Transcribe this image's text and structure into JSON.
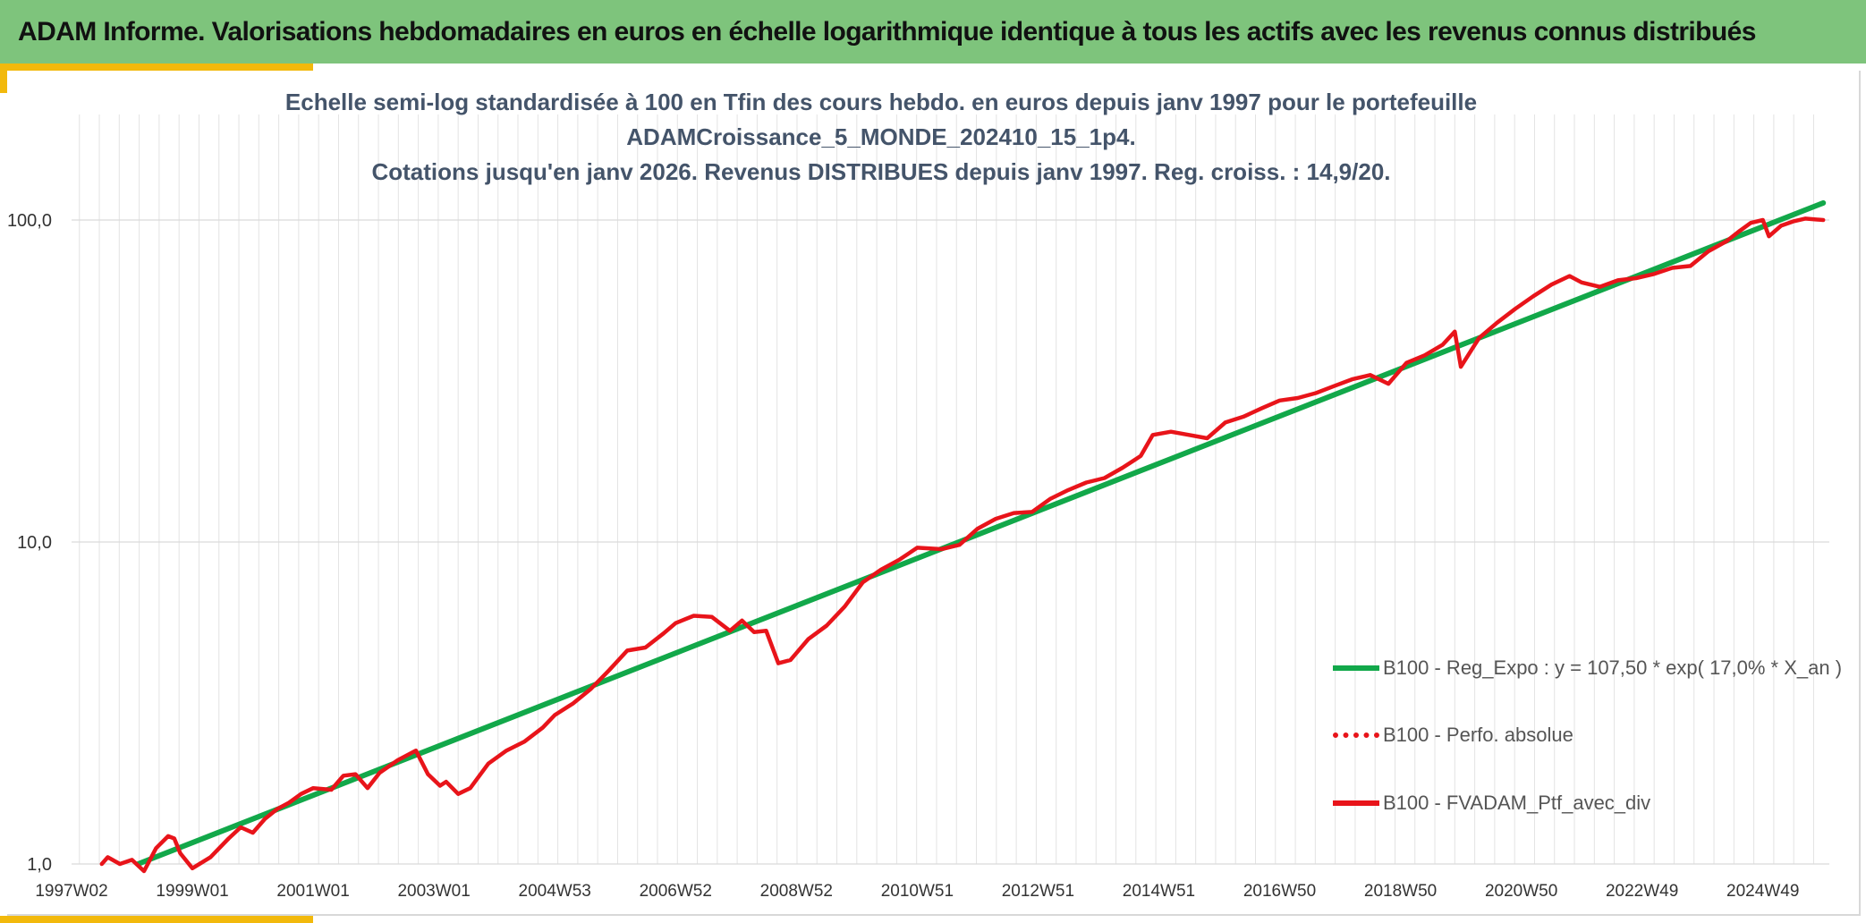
{
  "header": {
    "title": "ADAM Informe. Valorisations hebdomadaires en euros en échelle logarithmique identique à tous les actifs avec les revenus connus distribués"
  },
  "colors": {
    "banner": "#7ec47c",
    "accent": "#f2b90c",
    "regression": "#12a84a",
    "portfolio": "#e8141a",
    "title_text": "#44546a"
  },
  "chart_data": {
    "type": "line",
    "title_lines": [
      "Echelle semi-log standardisée à 100 en Tfin des cours hebdo. en euros depuis janv 1997 pour le portefeuille",
      "ADAMCroissance_5_MONDE_202410_15_1p4.",
      "Cotations jusqu'en janv 2026. Revenus DISTRIBUES depuis janv 1997. Reg. croiss. : 14,9/20."
    ],
    "y_scale": "log",
    "ylim": [
      1,
      200
    ],
    "y_ticks": [
      {
        "value": 1,
        "label": "1,0"
      },
      {
        "value": 10,
        "label": "10,0"
      },
      {
        "value": 100,
        "label": "100,0"
      }
    ],
    "xlim": [
      1997.0,
      2026.1
    ],
    "x_ticks": [
      {
        "value": 1997.0,
        "label": "1997W02"
      },
      {
        "value": 1999.0,
        "label": "1999W01"
      },
      {
        "value": 2001.0,
        "label": "2001W01"
      },
      {
        "value": 2003.0,
        "label": "2003W01"
      },
      {
        "value": 2005.0,
        "label": "2004W53"
      },
      {
        "value": 2007.0,
        "label": "2006W52"
      },
      {
        "value": 2009.0,
        "label": "2008W52"
      },
      {
        "value": 2011.0,
        "label": "2010W51"
      },
      {
        "value": 2013.0,
        "label": "2012W51"
      },
      {
        "value": 2015.0,
        "label": "2014W51"
      },
      {
        "value": 2017.0,
        "label": "2016W50"
      },
      {
        "value": 2019.0,
        "label": "2018W50"
      },
      {
        "value": 2021.0,
        "label": "2020W50"
      },
      {
        "value": 2023.0,
        "label": "2022W49"
      },
      {
        "value": 2025.0,
        "label": "2024W49"
      }
    ],
    "grid": {
      "vertical": true,
      "horizontal": true
    },
    "legend_position": "right",
    "series": [
      {
        "name": "B100 - Reg_Expo : y = 107,50 * exp( 17,0% *  X_an )",
        "style": "solid",
        "color": "#12a84a",
        "x": [
          1998.1,
          2026.0
        ],
        "y": [
          1.0,
          113
        ]
      },
      {
        "name": "B100 - Perfo. absolue",
        "style": "dotted",
        "color": "#e8141a",
        "x": [],
        "y": []
      },
      {
        "name": "B100 - FVADAM_Ptf_avec_div",
        "style": "solid",
        "color": "#e8141a",
        "x": [
          1997.5,
          1997.6,
          1997.8,
          1998.0,
          1998.2,
          1998.4,
          1998.6,
          1998.7,
          1998.8,
          1999.0,
          1999.3,
          1999.6,
          1999.8,
          2000.0,
          2000.2,
          2000.4,
          2000.6,
          2000.8,
          2001.0,
          2001.3,
          2001.5,
          2001.7,
          2001.9,
          2002.1,
          2002.4,
          2002.7,
          2002.9,
          2003.1,
          2003.2,
          2003.4,
          2003.6,
          2003.9,
          2004.2,
          2004.5,
          2004.8,
          2005.0,
          2005.3,
          2005.6,
          2005.9,
          2006.2,
          2006.5,
          2006.8,
          2007.0,
          2007.3,
          2007.6,
          2007.9,
          2008.1,
          2008.3,
          2008.5,
          2008.7,
          2008.9,
          2009.2,
          2009.5,
          2009.8,
          2010.1,
          2010.4,
          2010.7,
          2011.0,
          2011.4,
          2011.7,
          2012.0,
          2012.3,
          2012.6,
          2012.9,
          2013.2,
          2013.5,
          2013.8,
          2014.1,
          2014.4,
          2014.7,
          2014.9,
          2015.2,
          2015.5,
          2015.8,
          2016.1,
          2016.4,
          2016.7,
          2017.0,
          2017.3,
          2017.6,
          2017.9,
          2018.2,
          2018.5,
          2018.8,
          2019.1,
          2019.4,
          2019.7,
          2019.9,
          2020.0,
          2020.3,
          2020.6,
          2020.9,
          2021.2,
          2021.5,
          2021.8,
          2022.0,
          2022.3,
          2022.6,
          2022.9,
          2023.2,
          2023.5,
          2023.8,
          2024.1,
          2024.4,
          2024.6,
          2024.8,
          2025.0,
          2025.1,
          2025.3,
          2025.5,
          2025.7,
          2026.0
        ],
        "y": [
          1.0,
          1.05,
          1.0,
          1.03,
          0.95,
          1.12,
          1.22,
          1.2,
          1.08,
          0.97,
          1.05,
          1.2,
          1.3,
          1.25,
          1.38,
          1.48,
          1.55,
          1.65,
          1.72,
          1.7,
          1.88,
          1.9,
          1.72,
          1.92,
          2.1,
          2.25,
          1.9,
          1.75,
          1.8,
          1.65,
          1.72,
          2.05,
          2.25,
          2.4,
          2.65,
          2.9,
          3.15,
          3.5,
          4.0,
          4.6,
          4.7,
          5.2,
          5.6,
          5.9,
          5.85,
          5.3,
          5.7,
          5.25,
          5.3,
          4.2,
          4.3,
          5.0,
          5.5,
          6.3,
          7.5,
          8.2,
          8.8,
          9.6,
          9.5,
          9.8,
          11.0,
          11.8,
          12.3,
          12.4,
          13.6,
          14.5,
          15.3,
          15.8,
          17.0,
          18.5,
          21.5,
          22.0,
          21.5,
          21.0,
          23.5,
          24.5,
          26.0,
          27.5,
          28.0,
          29.0,
          30.5,
          32.0,
          33.0,
          31.0,
          36.0,
          38.0,
          41.0,
          45.0,
          35.0,
          43.0,
          48.0,
          53.0,
          58.0,
          63.0,
          67.0,
          64.0,
          62.0,
          65.0,
          66.0,
          68.0,
          71.0,
          72.0,
          80.0,
          86.0,
          92.0,
          98.0,
          100.0,
          89.0,
          96.0,
          99.0,
          101.0,
          100.0
        ]
      }
    ]
  }
}
